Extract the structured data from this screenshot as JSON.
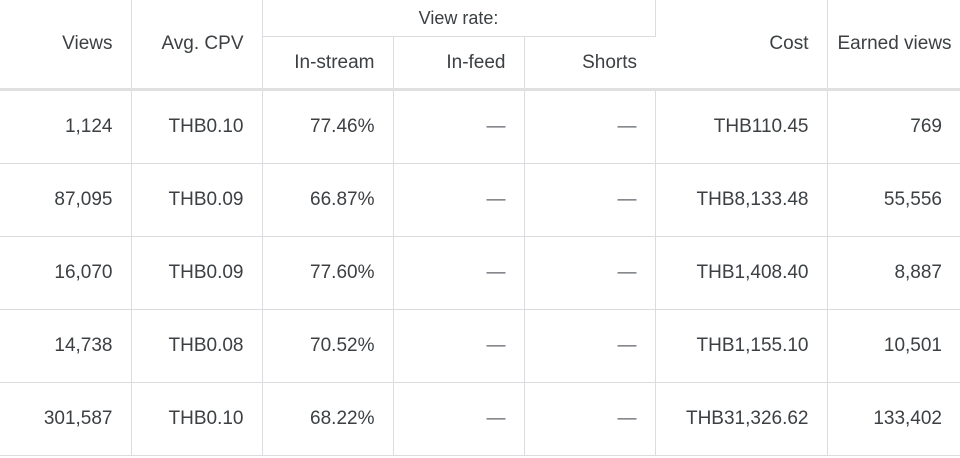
{
  "table": {
    "headers": {
      "views": "Views",
      "avg_cpv": "Avg. CPV",
      "view_rate_group": "View rate:",
      "in_stream": "In-stream",
      "in_feed": "In-feed",
      "shorts": "Shorts",
      "cost": "Cost",
      "earned_views": "Earned views"
    },
    "rows": [
      {
        "views": "1,124",
        "avg_cpv": "THB0.10",
        "in_stream": "77.46%",
        "in_feed": "—",
        "shorts": "—",
        "cost": "THB110.45",
        "earned_views": "769"
      },
      {
        "views": "87,095",
        "avg_cpv": "THB0.09",
        "in_stream": "66.87%",
        "in_feed": "—",
        "shorts": "—",
        "cost": "THB8,133.48",
        "earned_views": "55,556"
      },
      {
        "views": "16,070",
        "avg_cpv": "THB0.09",
        "in_stream": "77.60%",
        "in_feed": "—",
        "shorts": "—",
        "cost": "THB1,408.40",
        "earned_views": "8,887"
      },
      {
        "views": "14,738",
        "avg_cpv": "THB0.08",
        "in_stream": "70.52%",
        "in_feed": "—",
        "shorts": "—",
        "cost": "THB1,155.10",
        "earned_views": "10,501"
      },
      {
        "views": "301,587",
        "avg_cpv": "THB0.10",
        "in_stream": "68.22%",
        "in_feed": "—",
        "shorts": "—",
        "cost": "THB31,326.62",
        "earned_views": "133,402"
      }
    ]
  }
}
